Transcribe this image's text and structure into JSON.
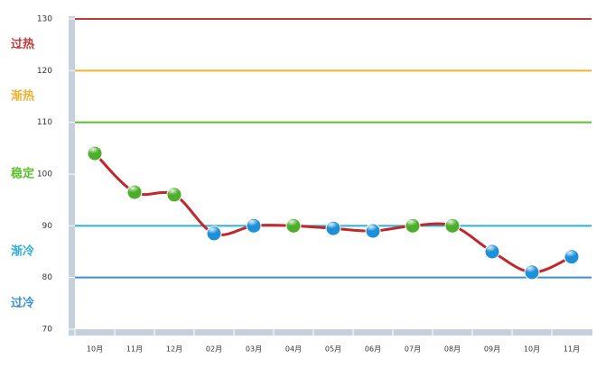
{
  "chart_data": {
    "type": "line",
    "categories": [
      "10月",
      "11月",
      "12月",
      "02月",
      "03月",
      "04月",
      "05月",
      "06月",
      "07月",
      "08月",
      "09月",
      "10月",
      "11月"
    ],
    "series": [
      {
        "color": "#c0282c",
        "values": [
          104,
          96.5,
          96,
          88.5,
          90,
          90,
          89.5,
          89,
          90,
          90,
          85,
          81,
          84
        ],
        "point_colors": [
          "#4caf2a",
          "#4caf2a",
          "#4caf2a",
          "#1e90d8",
          "#1e90d8",
          "#4caf2a",
          "#1e90d8",
          "#1e90d8",
          "#4caf2a",
          "#4caf2a",
          "#1e90d8",
          "#1e90d8",
          "#1e90d8"
        ]
      }
    ],
    "ylim": [
      70,
      130
    ],
    "yticks": [
      70,
      80,
      90,
      100,
      110,
      120,
      130
    ],
    "zones": [
      {
        "label": "过热",
        "line": 130,
        "color": "#c0393b"
      },
      {
        "label": "渐热",
        "line": 120,
        "color": "#f0b030"
      },
      {
        "label": "稳定",
        "line": 110,
        "color": "#5cc02c"
      },
      {
        "label": "渐冷",
        "line": 90,
        "color": "#2cb0d8"
      },
      {
        "label": "过冷",
        "line": 80,
        "color": "#3a8fd0"
      }
    ]
  }
}
